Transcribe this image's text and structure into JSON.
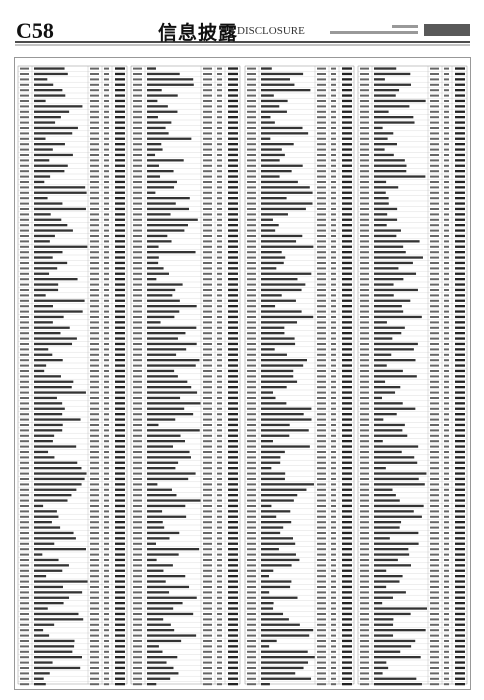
{
  "header": {
    "page": "C58",
    "section_title": "信息披露",
    "section_title_en": "DISCLOSURE"
  }
}
